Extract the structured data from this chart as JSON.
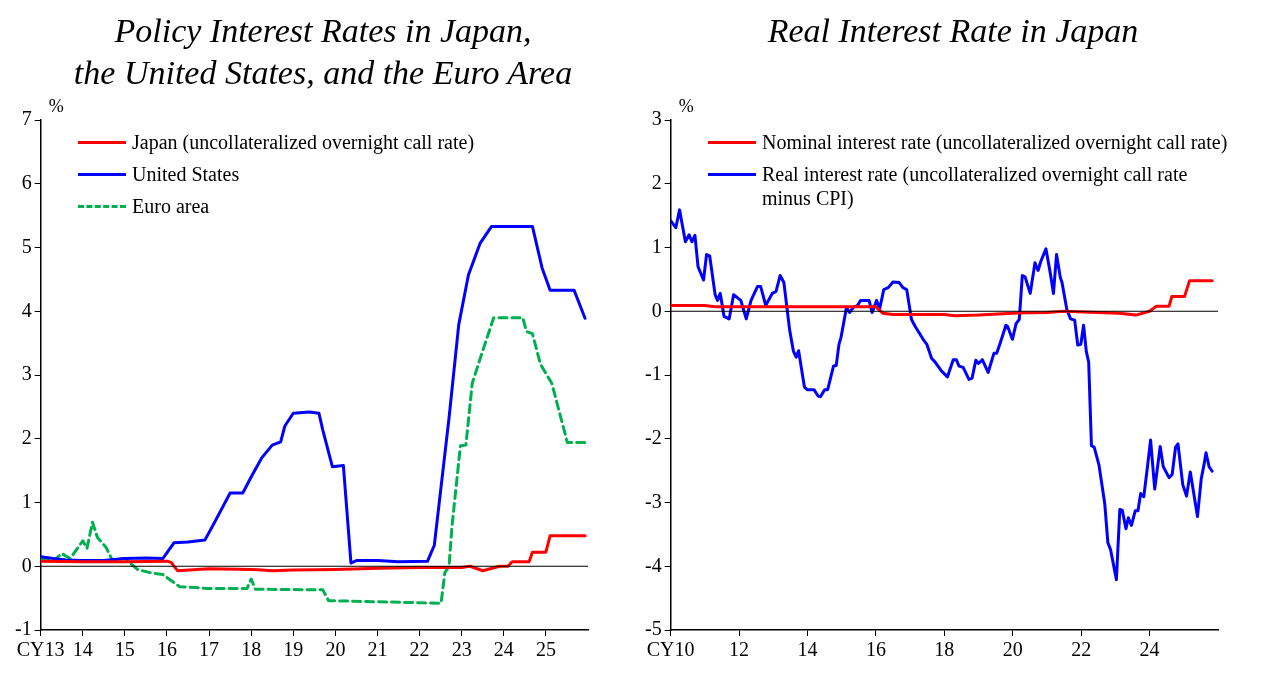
{
  "chart_data": [
    {
      "type": "line",
      "title": "Policy Interest Rates in Japan,\nthe United States, and the Euro Area",
      "ylabel": "%",
      "legend": "top left",
      "xlim": [
        2013,
        2026
      ],
      "xticks": [
        {
          "value": 2013,
          "label": "CY13"
        },
        {
          "value": 2014,
          "label": "14"
        },
        {
          "value": 2015,
          "label": "15"
        },
        {
          "value": 2016,
          "label": "16"
        },
        {
          "value": 2017,
          "label": "17"
        },
        {
          "value": 2018,
          "label": "18"
        },
        {
          "value": 2019,
          "label": "19"
        },
        {
          "value": 2020,
          "label": "20"
        },
        {
          "value": 2021,
          "label": "21"
        },
        {
          "value": 2022,
          "label": "22"
        },
        {
          "value": 2023,
          "label": "23"
        },
        {
          "value": 2024,
          "label": "24"
        },
        {
          "value": 2025,
          "label": "25"
        }
      ],
      "ylim": [
        -1,
        7
      ],
      "yticks": [
        -1,
        0,
        1,
        2,
        3,
        4,
        5,
        6,
        7
      ],
      "ref_lines": [
        {
          "axis": "y",
          "value": 0,
          "color": "#000000"
        }
      ],
      "series": [
        {
          "name": "Japan (uncollateralized overnight call rate)",
          "color": "#ff0000",
          "x": [
            2013,
            2014,
            2015,
            2016.0,
            2016.1,
            2016.25,
            2017,
            2018,
            2018.5,
            2019,
            2020,
            2021,
            2022,
            2023,
            2023.2,
            2023.5,
            2023.9,
            2024.1,
            2024.2,
            2024.6,
            2024.68,
            2025.0,
            2025.1,
            2025.93
          ],
          "values": [
            0.08,
            0.07,
            0.07,
            0.08,
            0.06,
            -0.07,
            -0.04,
            -0.05,
            -0.07,
            -0.06,
            -0.05,
            -0.03,
            -0.02,
            -0.02,
            0,
            -0.07,
            0,
            0,
            0.07,
            0.07,
            0.22,
            0.22,
            0.48,
            0.48
          ]
        },
        {
          "name": "United States",
          "color": "#0000ff",
          "x": [
            2013,
            2013.3,
            2013.6,
            2014,
            2014.5,
            2015,
            2015.5,
            2015.9,
            2016.17,
            2016.5,
            2016.9,
            2017.1,
            2017.3,
            2017.5,
            2017.8,
            2018.0,
            2018.25,
            2018.5,
            2018.7,
            2018.8,
            2019.0,
            2019.38,
            2019.61,
            2019.7,
            2019.93,
            2020.19,
            2020.37,
            2020.5,
            2021.0,
            2021.5,
            2022.19,
            2022.35,
            2022.7,
            2022.93,
            2023.16,
            2023.44,
            2023.71,
            2024.68,
            2024.91,
            2025.1,
            2025.67,
            2025.93
          ],
          "values": [
            0.15,
            0.12,
            0.1,
            0.09,
            0.09,
            0.12,
            0.13,
            0.12,
            0.37,
            0.38,
            0.41,
            0.65,
            0.9,
            1.15,
            1.15,
            1.4,
            1.7,
            1.9,
            1.95,
            2.2,
            2.4,
            2.42,
            2.4,
            2.14,
            1.56,
            1.58,
            0.05,
            0.09,
            0.09,
            0.07,
            0.08,
            0.33,
            2.33,
            3.79,
            4.57,
            5.07,
            5.33,
            5.33,
            4.68,
            4.33,
            4.33,
            3.89
          ]
        },
        {
          "name": "Euro area",
          "color": "#00b050",
          "line_style": "dashed",
          "x": [
            2013,
            2013.3,
            2013.5,
            2013.7,
            2014.0,
            2014.1,
            2014.23,
            2014.35,
            2014.55,
            2014.7,
            2015.0,
            2015.3,
            2015.6,
            2015.9,
            2016.3,
            2017.0,
            2017.9,
            2018.0,
            2018.1,
            2019.7,
            2019.84,
            2022.51,
            2022.6,
            2022.7,
            2022.77,
            2022.97,
            2023.1,
            2023.25,
            2023.48,
            2023.76,
            2024.45,
            2024.54,
            2024.68,
            2024.87,
            2025.14,
            2025.51,
            2025.93
          ],
          "values": [
            0.12,
            0.08,
            0.2,
            0.12,
            0.4,
            0.28,
            0.69,
            0.45,
            0.3,
            0.1,
            0.12,
            -0.05,
            -0.1,
            -0.13,
            -0.32,
            -0.35,
            -0.35,
            -0.2,
            -0.36,
            -0.37,
            -0.54,
            -0.58,
            -0.1,
            0,
            0.63,
            1.89,
            1.9,
            2.87,
            3.34,
            3.9,
            3.9,
            3.68,
            3.65,
            3.17,
            2.87,
            1.94,
            1.94
          ]
        }
      ]
    },
    {
      "type": "line",
      "title": "Real Interest Rate in Japan",
      "ylabel": "%",
      "legend": "top",
      "xlim": [
        2010,
        2026
      ],
      "xticks": [
        {
          "value": 2010,
          "label": "CY10"
        },
        {
          "value": 2012,
          "label": "12"
        },
        {
          "value": 2014,
          "label": "14"
        },
        {
          "value": 2016,
          "label": "16"
        },
        {
          "value": 2018,
          "label": "18"
        },
        {
          "value": 2020,
          "label": "20"
        },
        {
          "value": 2022,
          "label": "22"
        },
        {
          "value": 2024,
          "label": "24"
        }
      ],
      "ylim": [
        -5,
        3
      ],
      "yticks": [
        -5,
        -4,
        -3,
        -2,
        -1,
        0,
        1,
        2,
        3
      ],
      "ref_lines": [
        {
          "axis": "y",
          "value": 0,
          "color": "#000000"
        }
      ],
      "series": [
        {
          "name": "Nominal interest rate (uncollateralized overnight call rate)",
          "color": "#ff0000",
          "x": [
            2010,
            2011,
            2011.3,
            2016.0,
            2016.2,
            2016.5,
            2018,
            2018.3,
            2019,
            2020,
            2021,
            2021.5,
            2023.1,
            2023.6,
            2024.0,
            2024.2,
            2024.57,
            2024.65,
            2025.02,
            2025.17,
            2025.83
          ],
          "values": [
            0.09,
            0.09,
            0.07,
            0.07,
            -0.03,
            -0.05,
            -0.05,
            -0.07,
            -0.06,
            -0.03,
            -0.02,
            0,
            -0.03,
            -0.06,
            0,
            0.08,
            0.08,
            0.23,
            0.23,
            0.48,
            0.48
          ]
        },
        {
          "name": "Real interest rate (uncollateralized overnight call rate minus CPI)",
          "color": "#0000ff",
          "x": [
            2010.0,
            2010.15,
            2010.26,
            2010.43,
            2010.54,
            2010.62,
            2010.71,
            2010.8,
            2010.96,
            2011.05,
            2011.14,
            2011.3,
            2011.37,
            2011.45,
            2011.56,
            2011.71,
            2011.84,
            2012.05,
            2012.21,
            2012.35,
            2012.54,
            2012.63,
            2012.78,
            2012.97,
            2013.08,
            2013.2,
            2013.31,
            2013.48,
            2013.59,
            2013.67,
            2013.74,
            2013.91,
            2013.99,
            2014.19,
            2014.31,
            2014.38,
            2014.5,
            2014.59,
            2014.76,
            2014.84,
            2014.92,
            2014.98,
            2015.14,
            2015.23,
            2015.34,
            2015.46,
            2015.55,
            2015.8,
            2015.89,
            2016.02,
            2016.11,
            2016.23,
            2016.36,
            2016.5,
            2016.68,
            2016.79,
            2016.9,
            2017.04,
            2017.15,
            2017.38,
            2017.49,
            2017.63,
            2017.72,
            2017.92,
            2018.09,
            2018.26,
            2018.35,
            2018.43,
            2018.55,
            2018.72,
            2018.81,
            2018.92,
            2019.0,
            2019.11,
            2019.28,
            2019.45,
            2019.53,
            2019.62,
            2019.8,
            2019.85,
            2019.99,
            2020.1,
            2020.19,
            2020.28,
            2020.36,
            2020.51,
            2020.65,
            2020.74,
            2020.82,
            2020.97,
            2021.1,
            2021.19,
            2021.28,
            2021.39,
            2021.44,
            2021.58,
            2021.69,
            2021.81,
            2021.9,
            2021.99,
            2022.07,
            2022.15,
            2022.22,
            2022.3,
            2022.38,
            2022.52,
            2022.69,
            2022.78,
            2022.86,
            2023.03,
            2023.13,
            2023.2,
            2023.31,
            2023.38,
            2023.47,
            2023.58,
            2023.66,
            2023.74,
            2023.83,
            2023.92,
            2024.03,
            2024.15,
            2024.31,
            2024.4,
            2024.57,
            2024.66,
            2024.76,
            2024.83,
            2024.97,
            2025.08,
            2025.19,
            2025.4,
            2025.51,
            2025.59,
            2025.65,
            2025.74,
            2025.83
          ],
          "values": [
            1.42,
            1.31,
            1.59,
            1.09,
            1.2,
            1.09,
            1.19,
            0.7,
            0.49,
            0.89,
            0.87,
            0.26,
            0.17,
            0.28,
            -0.08,
            -0.12,
            0.26,
            0.17,
            -0.12,
            0.17,
            0.39,
            0.39,
            0.09,
            0.28,
            0.31,
            0.56,
            0.45,
            -0.3,
            -0.63,
            -0.72,
            -0.62,
            -1.19,
            -1.23,
            -1.23,
            -1.33,
            -1.34,
            -1.23,
            -1.23,
            -0.86,
            -0.85,
            -0.52,
            -0.41,
            0.06,
            -0.02,
            0.06,
            0.09,
            0.17,
            0.17,
            -0.02,
            0.17,
            0.04,
            0.34,
            0.37,
            0.46,
            0.45,
            0.37,
            0.34,
            -0.13,
            -0.24,
            -0.44,
            -0.52,
            -0.74,
            -0.79,
            -0.94,
            -1.03,
            -0.76,
            -0.76,
            -0.86,
            -0.88,
            -1.07,
            -1.05,
            -0.77,
            -0.82,
            -0.76,
            -0.96,
            -0.66,
            -0.66,
            -0.52,
            -0.22,
            -0.24,
            -0.44,
            -0.19,
            -0.13,
            0.56,
            0.54,
            0.28,
            0.76,
            0.64,
            0.78,
            0.98,
            0.59,
            0.28,
            0.89,
            0.53,
            0.45,
            0.03,
            -0.12,
            -0.14,
            -0.53,
            -0.52,
            -0.22,
            -0.63,
            -0.8,
            -2.11,
            -2.13,
            -2.41,
            -3.02,
            -3.63,
            -3.74,
            -4.21,
            -3.11,
            -3.12,
            -3.41,
            -3.24,
            -3.36,
            -3.13,
            -3.13,
            -2.86,
            -2.91,
            -2.52,
            -2.02,
            -2.79,
            -2.12,
            -2.44,
            -2.61,
            -2.56,
            -2.13,
            -2.08,
            -2.72,
            -2.9,
            -2.52,
            -3.22,
            -2.63,
            -2.41,
            -2.22,
            -2.44,
            -2.51
          ]
        }
      ]
    }
  ]
}
